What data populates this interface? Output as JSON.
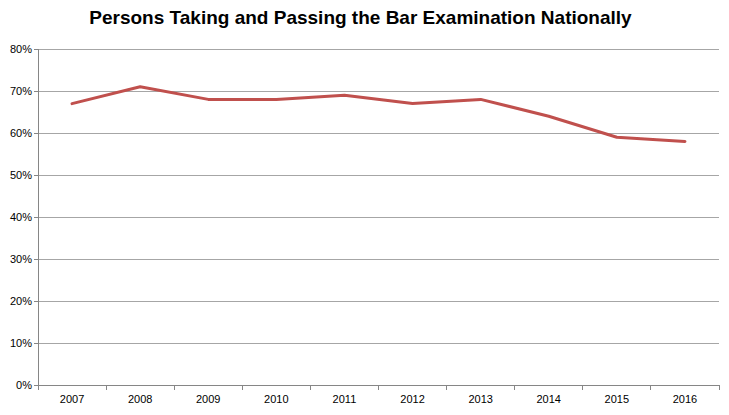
{
  "chart_data": {
    "type": "line",
    "title": "Persons Taking and Passing the Bar Examination Nationally",
    "categories": [
      "2007",
      "2008",
      "2009",
      "2010",
      "2011",
      "2012",
      "2013",
      "2014",
      "2015",
      "2016"
    ],
    "values": [
      67,
      71,
      68,
      68,
      69,
      67,
      68,
      64,
      59,
      58
    ],
    "color": "#c0504d",
    "ylim": [
      0,
      80
    ],
    "yticks": [
      {
        "value": 0,
        "label": "0%"
      },
      {
        "value": 10,
        "label": "10%"
      },
      {
        "value": 20,
        "label": "20%"
      },
      {
        "value": 30,
        "label": "30%"
      },
      {
        "value": 40,
        "label": "40%"
      },
      {
        "value": 50,
        "label": "50%"
      },
      {
        "value": 60,
        "label": "60%"
      },
      {
        "value": 70,
        "label": "70%"
      },
      {
        "value": 80,
        "label": "80%"
      }
    ],
    "grid": true
  }
}
